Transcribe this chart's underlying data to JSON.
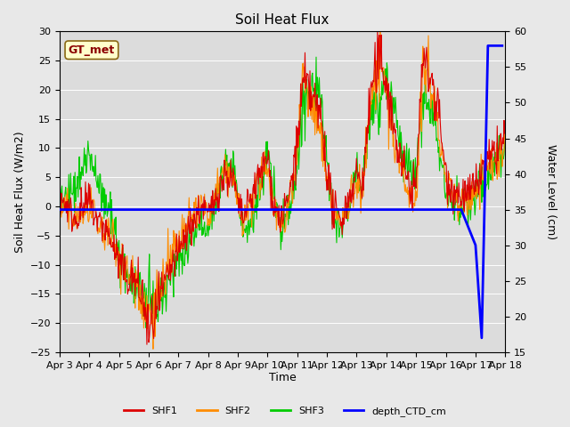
{
  "title": "Soil Heat Flux",
  "ylabel_left": "Soil Heat Flux (W/m2)",
  "ylabel_right": "Water Level (cm)",
  "xlabel": "Time",
  "annotation_text": "GT_met",
  "ylim_left": [
    -25,
    30
  ],
  "ylim_right": [
    15,
    60
  ],
  "xlim_days": [
    0,
    15
  ],
  "xtick_labels": [
    "Apr 3",
    "Apr 4",
    "Apr 5",
    "Apr 6",
    "Apr 7",
    "Apr 8",
    "Apr 9",
    "Apr 10",
    "Apr 11",
    "Apr 12",
    "Apr 13",
    "Apr 14",
    "Apr 15",
    "Apr 16",
    "Apr 17",
    "Apr 18"
  ],
  "shf1_color": "#dd0000",
  "shf2_color": "#ff8c00",
  "shf3_color": "#00cc00",
  "ctd_color": "#0000ff",
  "bg_color": "#e8e8e8",
  "plot_bg_color": "#dcdcdc",
  "annotation_fg": "#8b0000",
  "annotation_bg": "#ffffcc",
  "annotation_edge": "#8b6914"
}
